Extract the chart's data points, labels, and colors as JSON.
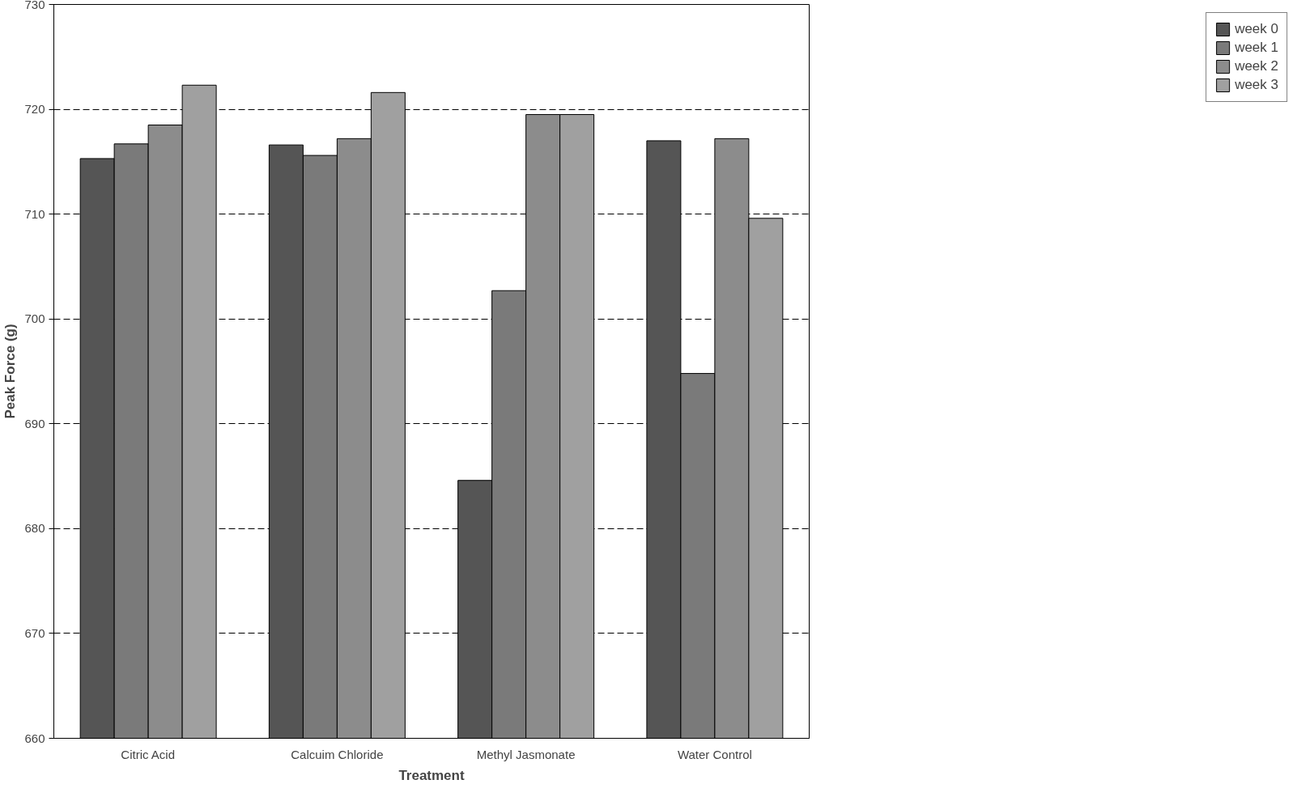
{
  "chart_data": {
    "type": "bar",
    "xlabel": "Treatment",
    "ylabel": "Peak Force (g)",
    "categories": [
      "Citric Acid",
      "Calcuim Chloride",
      "Methyl Jasmonate",
      "Water Control"
    ],
    "series": [
      {
        "name": "week 0",
        "color": "#555555",
        "values": [
          715.3,
          716.6,
          684.6,
          717.0
        ]
      },
      {
        "name": "week 1",
        "color": "#7a7a7a",
        "values": [
          716.7,
          715.6,
          702.7,
          694.8
        ]
      },
      {
        "name": "week 2",
        "color": "#8c8c8c",
        "values": [
          718.5,
          717.2,
          719.5,
          717.2
        ]
      },
      {
        "name": "week 3",
        "color": "#a0a0a0",
        "values": [
          722.3,
          721.6,
          719.5,
          709.6
        ]
      }
    ],
    "ylim": [
      660,
      730
    ],
    "yticks": [
      660,
      670,
      680,
      690,
      700,
      710,
      720,
      730
    ],
    "grid": "y",
    "legend": "right"
  }
}
